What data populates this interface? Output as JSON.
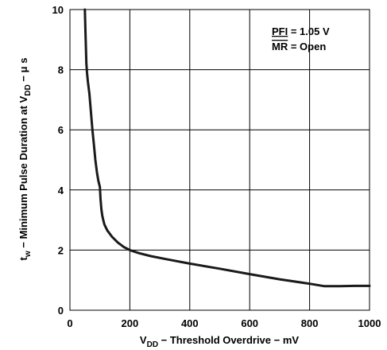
{
  "chart_data": {
    "type": "line",
    "xlim": [
      0,
      1000
    ],
    "ylim": [
      0,
      10
    ],
    "xticks": [
      "0",
      "200",
      "400",
      "600",
      "800",
      "1000"
    ],
    "yticks": [
      "0",
      "2",
      "4",
      "6",
      "8",
      "10"
    ],
    "xlabel": {
      "main": "V",
      "sub": "DD",
      "rest": " − Threshold Overdrive − mV"
    },
    "ylabel": {
      "main": "t",
      "sub": "w",
      "mid": " − Minimum Pulse Duration at V",
      "sub2": "DD",
      "rest": " − μ s"
    },
    "grid": true,
    "annotations": [
      {
        "prefix": "PFI",
        "suffix": " = 1.05 V",
        "decoration": "underline"
      },
      {
        "prefix": "MR",
        "suffix": " = Open",
        "decoration": "overline"
      }
    ],
    "series": [
      {
        "color": "#1a1a1a",
        "x": [
          50,
          52,
          55,
          57,
          60,
          65,
          70,
          75,
          80,
          85,
          90,
          95,
          100,
          102,
          105,
          108,
          110,
          115,
          125,
          140,
          160,
          180,
          200,
          230,
          270,
          320,
          400,
          500,
          600,
          700,
          800,
          850,
          900,
          950,
          1000
        ],
        "y": [
          10,
          9.2,
          8.2,
          7.9,
          7.6,
          7.2,
          6.6,
          6.0,
          5.5,
          5.0,
          4.6,
          4.3,
          4.1,
          3.7,
          3.35,
          3.15,
          3.05,
          2.85,
          2.65,
          2.45,
          2.25,
          2.1,
          2.0,
          1.9,
          1.8,
          1.7,
          1.55,
          1.38,
          1.2,
          1.03,
          0.88,
          0.8,
          0.8,
          0.81,
          0.81
        ]
      }
    ]
  }
}
